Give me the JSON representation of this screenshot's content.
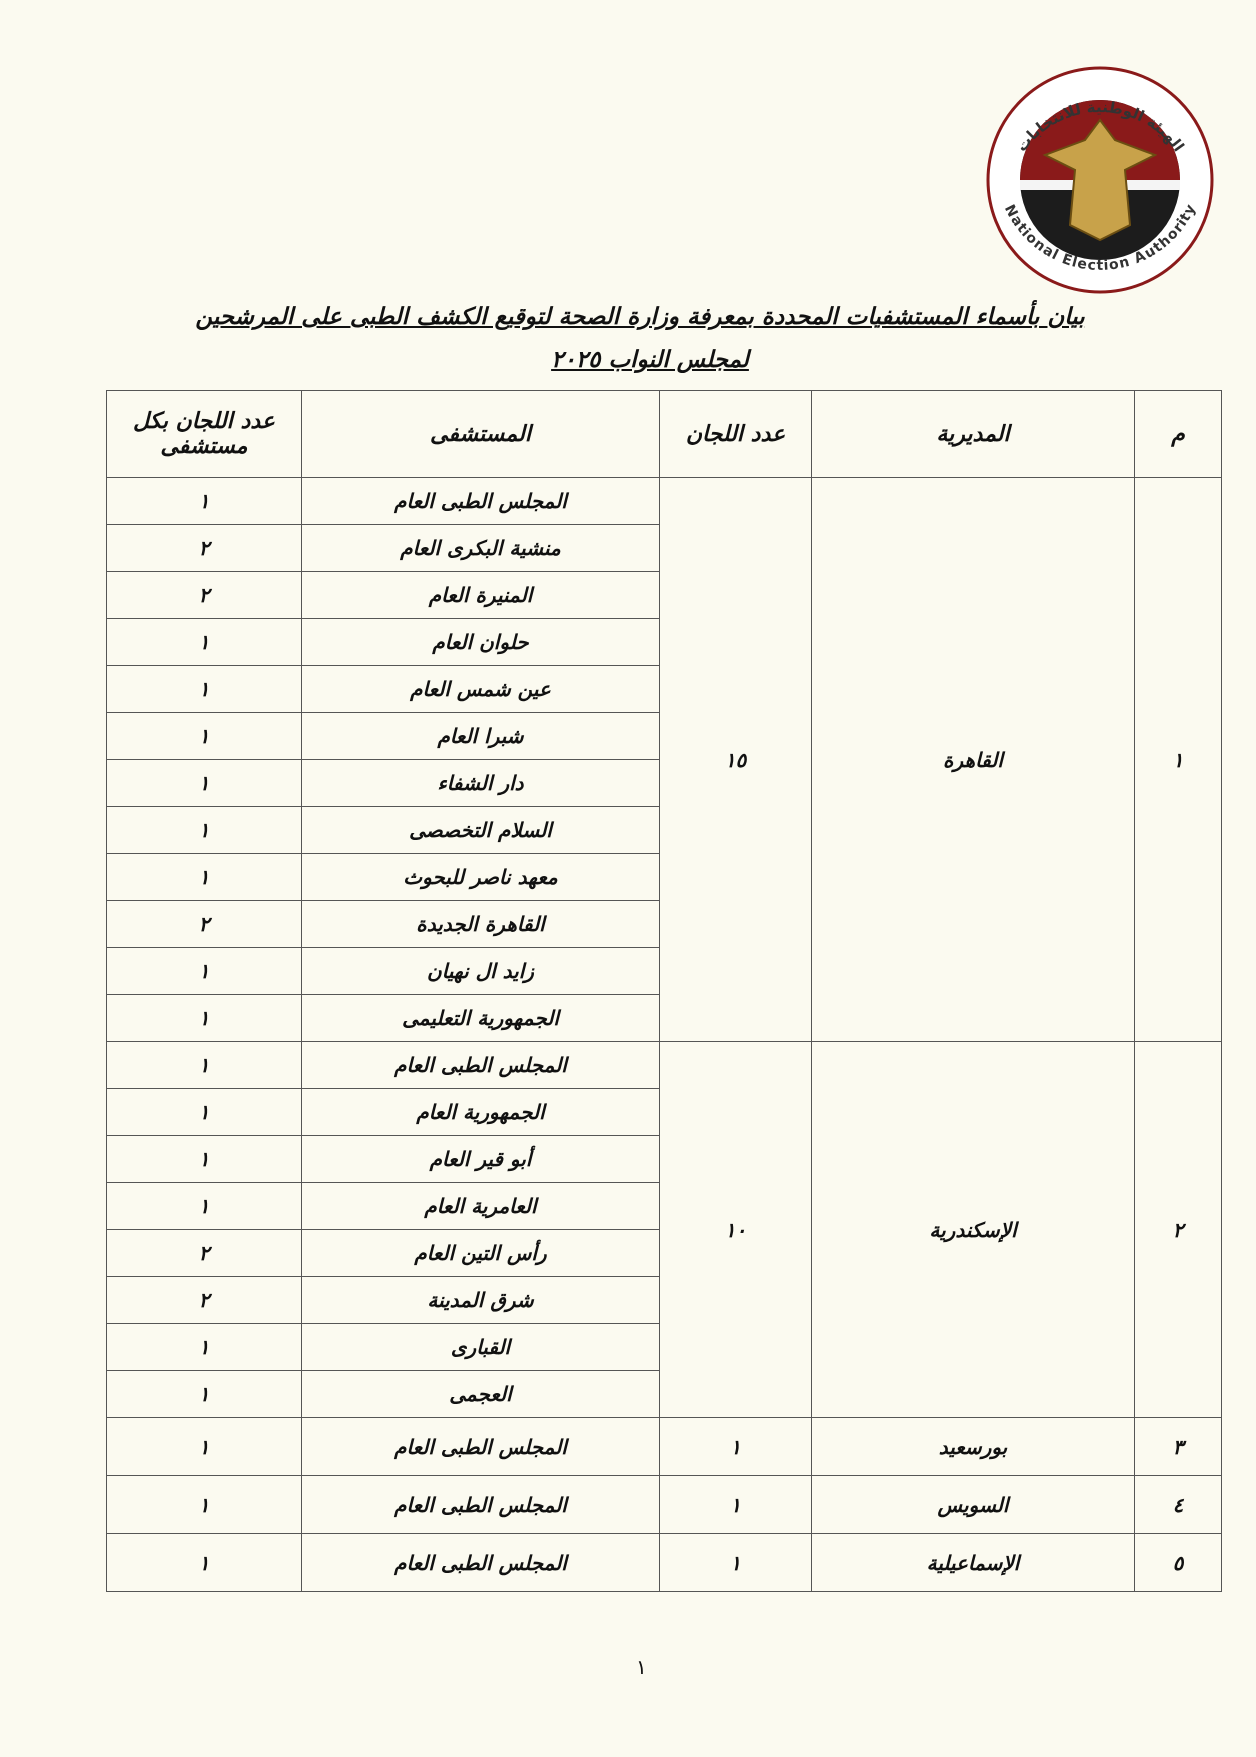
{
  "logo": {
    "arabic_name": "الهيئة الوطنية للانتخابات",
    "english_name": "National Election Authority"
  },
  "header": {
    "title_line1": "بيان بأسماء المستشفيات المحددة بمعرفة  وزارة الصحة لتوقيع الكشف الطبى على المرشحين",
    "title_line2": "لمجلس النواب ٢٠٢٥"
  },
  "table": {
    "columns": [
      "م",
      "المديرية",
      "عدد اللجان",
      "المستشفى",
      "عدد اللجان بكل مستشفى"
    ],
    "groups": [
      {
        "index": "١",
        "directorate": "القاهرة",
        "committees": "١٥",
        "hospitals": [
          {
            "name": "المجلس الطبى العام",
            "committees": "١"
          },
          {
            "name": "منشية البكرى العام",
            "committees": "٢"
          },
          {
            "name": "المنيرة العام",
            "committees": "٢"
          },
          {
            "name": "حلوان العام",
            "committees": "١"
          },
          {
            "name": "عين شمس العام",
            "committees": "١"
          },
          {
            "name": "شبرا العام",
            "committees": "١"
          },
          {
            "name": "دار الشفاء",
            "committees": "١"
          },
          {
            "name": "السلام التخصصى",
            "committees": "١"
          },
          {
            "name": "معهد ناصر للبحوث",
            "committees": "١"
          },
          {
            "name": "القاهرة الجديدة",
            "committees": "٢"
          },
          {
            "name": "زايد ال نهيان",
            "committees": "١"
          },
          {
            "name": "الجمهورية التعليمى",
            "committees": "١"
          }
        ]
      },
      {
        "index": "٢",
        "directorate": "الإسكندرية",
        "committees": "١٠",
        "hospitals": [
          {
            "name": "المجلس الطبى العام",
            "committees": "١"
          },
          {
            "name": "الجمهورية العام",
            "committees": "١"
          },
          {
            "name": "أبو قير العام",
            "committees": "١"
          },
          {
            "name": "العامرية العام",
            "committees": "١"
          },
          {
            "name": "رأس التين العام",
            "committees": "٢"
          },
          {
            "name": "شرق المدينة",
            "committees": "٢"
          },
          {
            "name": "القبارى",
            "committees": "١"
          },
          {
            "name": "العجمى",
            "committees": "١"
          }
        ]
      },
      {
        "index": "٣",
        "directorate": "بورسعيد",
        "committees": "١",
        "hospitals": [
          {
            "name": "المجلس الطبى العام",
            "committees": "١"
          }
        ]
      },
      {
        "index": "٤",
        "directorate": "السويس",
        "committees": "١",
        "hospitals": [
          {
            "name": "المجلس الطبى العام",
            "committees": "١"
          }
        ]
      },
      {
        "index": "٥",
        "directorate": "الإسماعيلية",
        "committees": "١",
        "hospitals": [
          {
            "name": "المجلس الطبى العام",
            "committees": "١"
          }
        ]
      }
    ]
  },
  "page_number": "١"
}
